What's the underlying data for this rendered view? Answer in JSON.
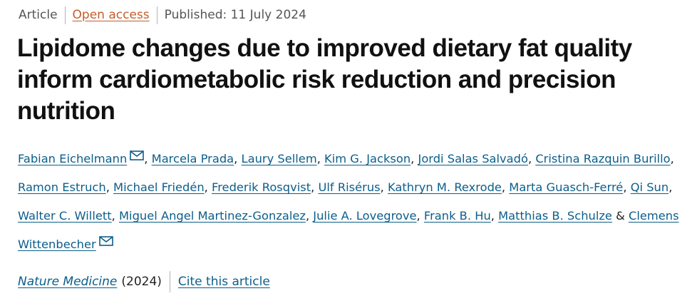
{
  "meta": {
    "article_type": "Article",
    "open_access": "Open access",
    "published": "Published: 11 July 2024"
  },
  "title": "Lipidome changes due to improved dietary fat quality inform cardiometabolic risk reduction and precision nutrition",
  "authors": [
    {
      "name": "Fabian Eichelmann",
      "sep": ", ",
      "has_email": true
    },
    {
      "name": "Marcela Prada",
      "sep": ", ",
      "has_email": false
    },
    {
      "name": "Laury Sellem",
      "sep": ", ",
      "has_email": false
    },
    {
      "name": "Kim G. Jackson",
      "sep": ", ",
      "has_email": false
    },
    {
      "name": "Jordi Salas Salvadó",
      "sep": ", ",
      "has_email": false
    },
    {
      "name": "Cristina Razquin Burillo",
      "sep": ", ",
      "has_email": false
    },
    {
      "name": "Ramon Estruch",
      "sep": ", ",
      "has_email": false
    },
    {
      "name": "Michael Friedén",
      "sep": ", ",
      "has_email": false
    },
    {
      "name": "Frederik Rosqvist",
      "sep": ", ",
      "has_email": false
    },
    {
      "name": "Ulf Risérus",
      "sep": ", ",
      "has_email": false
    },
    {
      "name": "Kathryn M. Rexrode",
      "sep": ", ",
      "has_email": false
    },
    {
      "name": "Marta Guasch-Ferré",
      "sep": ", ",
      "has_email": false
    },
    {
      "name": "Qi Sun",
      "sep": ", ",
      "has_email": false
    },
    {
      "name": "Walter C. Willett",
      "sep": ", ",
      "has_email": false
    },
    {
      "name": "Miguel Angel Martinez-Gonzalez",
      "sep": ", ",
      "has_email": false
    },
    {
      "name": "Julie A. Lovegrove",
      "sep": ", ",
      "has_email": false
    },
    {
      "name": "Frank B. Hu",
      "sep": ", ",
      "has_email": false
    },
    {
      "name": "Matthias B. Schulze",
      "sep": " & ",
      "has_email": false
    },
    {
      "name": "Clemens Wittenbecher",
      "sep": "",
      "has_email": true
    }
  ],
  "journal": {
    "name": "Nature Medicine",
    "year": "(2024)",
    "cite_label": "Cite this article"
  },
  "icons": {
    "email": "mail-envelope-icon"
  },
  "colors": {
    "link": "#0b5e8a",
    "open_access": "#c45d2c",
    "meta_text": "#555555",
    "title": "#111111"
  }
}
